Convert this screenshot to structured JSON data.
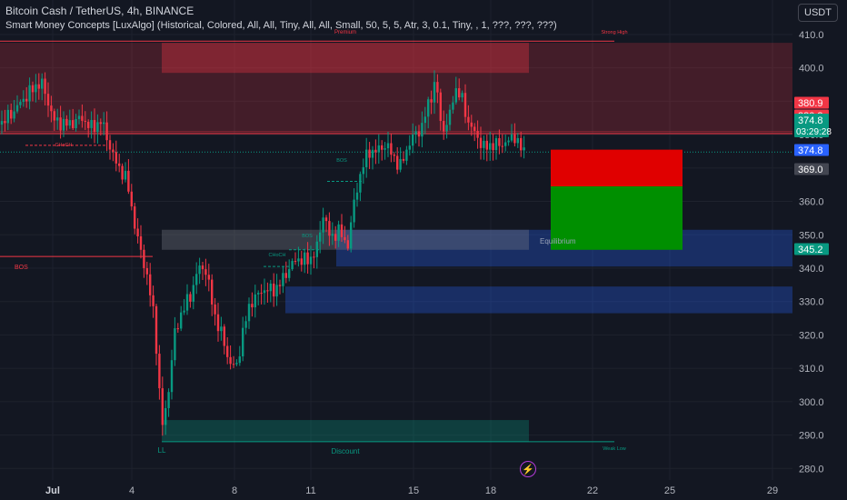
{
  "header": {
    "symbol": "Bitcoin Cash / TetherUS, 4h, BINANCE",
    "indicator": "Smart Money Concepts [LuxAlgo] (Historical, Colored, All, All, Tiny, All, All, Small, 50, 5, 5, Atr, 3, 0.1, Tiny, , 1, ???, ???, ???)"
  },
  "currency_button": "USDT",
  "chart_data": {
    "type": "candlestick",
    "y_ticks": [
      280.0,
      290.0,
      300.0,
      310.0,
      320.0,
      330.0,
      340.0,
      350.0,
      360.0,
      370.0,
      380.0,
      390.0,
      400.0,
      410.0
    ],
    "y_tick_labels": [
      "280.0",
      "290.0",
      "300.0",
      "310.0",
      "320.0",
      "330.0",
      "340.0",
      "350.0",
      "360.0",
      "370.0",
      "380.0",
      "390.0",
      "400.0",
      "410.0"
    ],
    "x_tick_labels": [
      "Jul",
      "4",
      "8",
      "11",
      "15",
      "18",
      "22",
      "25",
      "29"
    ],
    "ylim": [
      275,
      413
    ],
    "price_labels": [
      {
        "text": "380.9",
        "value": 380.9,
        "color": "#f23645"
      },
      {
        "text": "380.3",
        "value": 380.3,
        "color": "#f23645"
      },
      {
        "text": "374.8",
        "value": 374.8,
        "color": "#089981",
        "sub": "03:29:28"
      },
      {
        "text": "374.8",
        "value": 374.8,
        "color": "#2962ff"
      },
      {
        "text": "369.0",
        "value": 369.0,
        "color": "#434651"
      },
      {
        "text": "345.2",
        "value": 345.2,
        "color": "#089981"
      }
    ],
    "annotations": [
      {
        "text": "Premium",
        "color": "#f23645"
      },
      {
        "text": "Strong High",
        "color": "#f23645"
      },
      {
        "text": "CHoCH",
        "color": "#f23645"
      },
      {
        "text": "BOS",
        "color": "#f23645"
      },
      {
        "text": "BOS",
        "color": "#089981"
      },
      {
        "text": "BOS",
        "color": "#089981"
      },
      {
        "text": "CHoCH",
        "color": "#089981"
      },
      {
        "text": "Equilibrium",
        "color": "#9aa4b8"
      },
      {
        "text": "LL",
        "color": "#089981"
      },
      {
        "text": "Discount",
        "color": "#089981"
      },
      {
        "text": "Weak Low",
        "color": "#089981"
      }
    ],
    "zones": [
      {
        "name": "premium-zone",
        "from": 398.5,
        "to": 407.5,
        "color": "#f23645"
      },
      {
        "name": "supply-zone",
        "from": 380.3,
        "to": 407.5,
        "color": "#f23645"
      },
      {
        "name": "equilibrium-zone",
        "from": 345.5,
        "to": 351.5,
        "color": "#787b86"
      },
      {
        "name": "demand-zone",
        "from": 340.5,
        "to": 351.5,
        "color": "#2962ff"
      },
      {
        "name": "demand-zone-2",
        "from": 326.5,
        "to": 334.5,
        "color": "#2962ff"
      },
      {
        "name": "discount-zone",
        "from": 288.0,
        "to": 294.5,
        "color": "#089981"
      }
    ],
    "position": {
      "stop_top": 375.5,
      "entry": 364.5,
      "target_bottom": 345.5
    }
  }
}
